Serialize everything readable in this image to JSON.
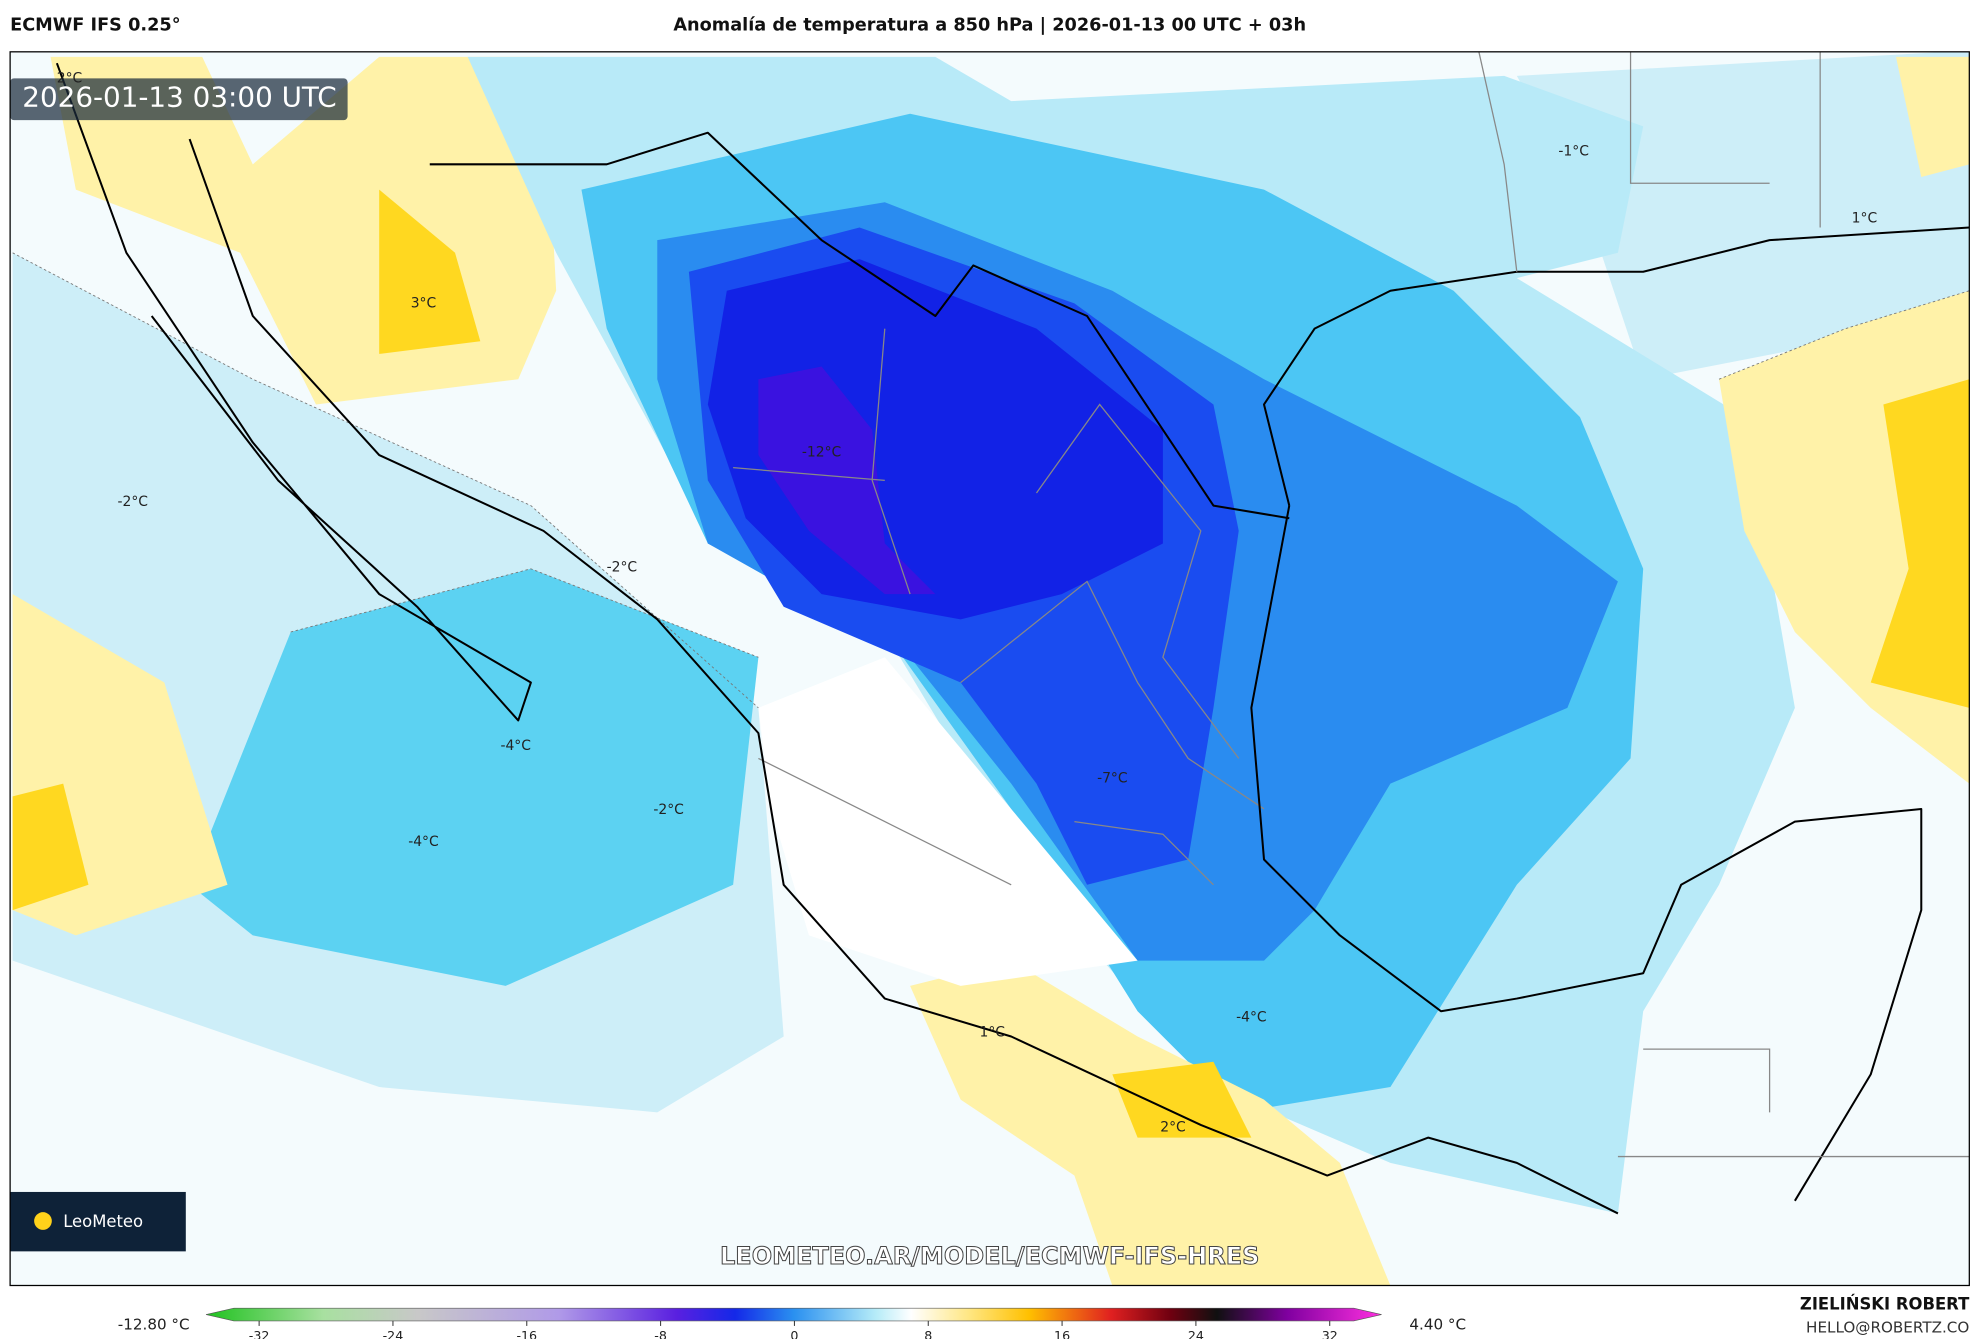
{
  "header": {
    "model": "ECMWF IFS 0.25°",
    "title": "Anomalía de temperatura a 850 hPa | 2026-01-13 00 UTC + 03h"
  },
  "map": {
    "valid_time": "2026-01-13 03:00 UTC",
    "watermark": "LEOMETEO.AR/MODEL/ECMWF-IFS-HRES",
    "logo": "LeoMeteo",
    "contour_labels": [
      "2°C",
      "3°C",
      "-2°C",
      "-12°C",
      "-2°C",
      "-4°C",
      "-4°C",
      "-2°C",
      "-7°C",
      "-4°C",
      "1°C",
      "2°C",
      "-1°C",
      "1°C"
    ]
  },
  "colorbar": {
    "min_label": "-12.80 °C",
    "max_label": "4.40 °C",
    "ticks": [
      -32,
      -24,
      -16,
      -8,
      0,
      8,
      16,
      24,
      32
    ]
  },
  "credit": {
    "author": "ZIELIŃSKI ROBERT",
    "email": "HELLO@ROBERTZ.CO"
  }
}
